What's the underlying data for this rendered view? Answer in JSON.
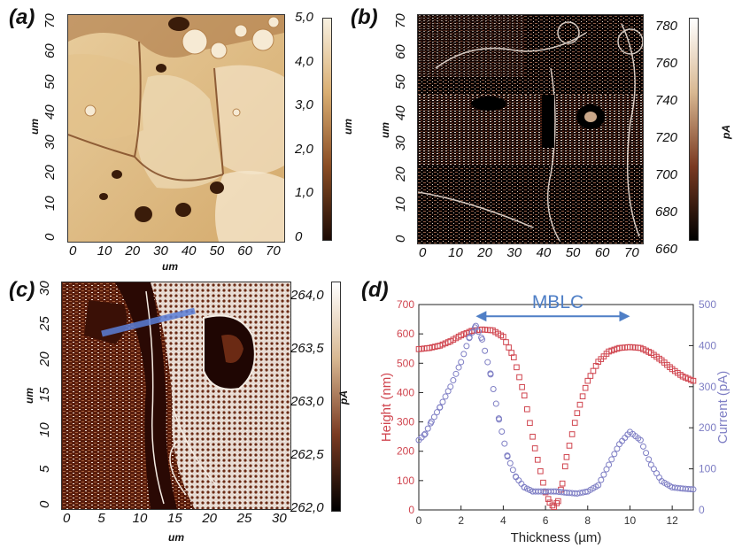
{
  "panels": {
    "a": {
      "letter": "(a)",
      "axis_label": "um",
      "y_ticks": [
        "70",
        "60",
        "50",
        "40",
        "30",
        "20",
        "10",
        "0"
      ],
      "x_ticks": [
        "0",
        "10",
        "20",
        "30",
        "40",
        "50",
        "60",
        "70"
      ],
      "colorbar_ticks": [
        "5,0",
        "4,0",
        "3,0",
        "2,0",
        "1,0",
        "0"
      ],
      "colorbar_unit": "um",
      "colormap": [
        "#f8f0e0",
        "#d9ae72",
        "#8a4d24",
        "#1c0a04"
      ]
    },
    "b": {
      "letter": "(b)",
      "axis_label": "um",
      "y_ticks": [
        "70",
        "60",
        "50",
        "40",
        "30",
        "20",
        "10",
        "0"
      ],
      "x_ticks": [
        "0",
        "10",
        "20",
        "30",
        "40",
        "50",
        "60",
        "70"
      ],
      "colorbar_ticks": [
        "780",
        "760",
        "740",
        "720",
        "700",
        "680",
        "660"
      ],
      "colorbar_unit": "pA",
      "colormap": [
        "#ffffff",
        "#d8b892",
        "#7a3a22",
        "#000000"
      ]
    },
    "c": {
      "letter": "(c)",
      "axis_label": "um",
      "y_ticks": [
        "30",
        "25",
        "20",
        "15",
        "10",
        "5",
        "0"
      ],
      "x_ticks": [
        "0",
        "5",
        "10",
        "15",
        "20",
        "25",
        "30"
      ],
      "colorbar_ticks": [
        "264,0",
        "263,5",
        "263,0",
        "262,5",
        "262,0"
      ],
      "colorbar_unit": "pA",
      "colormap": [
        "#ffffff",
        "#d8b892",
        "#7a3a22",
        "#000000"
      ]
    },
    "d": {
      "letter": "(d)",
      "annotation": "MBLC",
      "annotation_color": "#4f7fc6"
    }
  },
  "chart_data": {
    "type": "scatter",
    "xlabel": "Thickness (µm)",
    "ylabel": "Height (nm)",
    "y2label": "Current (pA)",
    "xlim": [
      0,
      13
    ],
    "ylim": [
      0,
      700
    ],
    "y2lim": [
      0,
      500
    ],
    "x_ticks": [
      "0",
      "2",
      "4",
      "6",
      "8",
      "10",
      "12"
    ],
    "y_ticks": [
      "0",
      "100",
      "200",
      "300",
      "400",
      "500",
      "600",
      "700"
    ],
    "y2_ticks": [
      "0",
      "100",
      "200",
      "300",
      "400",
      "500"
    ],
    "grid": false,
    "annotation": {
      "text": "MBLC",
      "x_from": 2.7,
      "x_to": 10.0,
      "y": 660
    },
    "series": [
      {
        "axis": "left",
        "marker": "square",
        "color": "#d0454f",
        "x": [
          0,
          0.5,
          1,
          1.5,
          2,
          2.5,
          3,
          3.5,
          4,
          4.5,
          5,
          5.5,
          6,
          6.2,
          6.4,
          6.6,
          6.8,
          7,
          7.5,
          8,
          8.5,
          9,
          9.5,
          10,
          10.5,
          11,
          11.5,
          12,
          12.5,
          13
        ],
        "values": [
          548,
          552,
          560,
          575,
          595,
          610,
          615,
          612,
          590,
          520,
          390,
          210,
          60,
          25,
          10,
          30,
          90,
          180,
          330,
          440,
          505,
          540,
          552,
          555,
          552,
          535,
          510,
          480,
          455,
          440
        ]
      },
      {
        "axis": "right",
        "marker": "circle",
        "color": "#7e7ec4",
        "x": [
          0,
          0.3,
          0.6,
          1,
          1.5,
          2,
          2.4,
          2.7,
          3,
          3.4,
          3.8,
          4.2,
          4.6,
          5,
          5.4,
          6,
          6.5,
          7,
          7.5,
          8,
          8.5,
          9,
          9.5,
          10,
          10.5,
          11,
          11.5,
          12,
          12.5,
          13
        ],
        "values": [
          170,
          185,
          215,
          250,
          300,
          360,
          420,
          448,
          415,
          330,
          220,
          130,
          80,
          55,
          45,
          45,
          45,
          42,
          40,
          45,
          60,
          110,
          160,
          190,
          170,
          110,
          70,
          55,
          52,
          50
        ]
      }
    ]
  }
}
